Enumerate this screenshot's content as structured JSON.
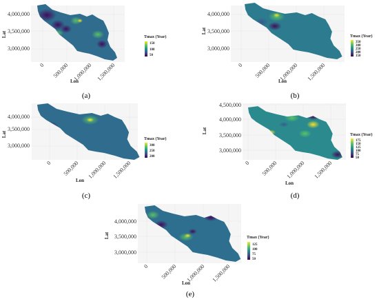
{
  "chart_data": [
    {
      "type": "heatmap",
      "caption": "(a)",
      "legend_title": "Tmax (Year)",
      "legend_ticks": [
        "150",
        "100",
        "50"
      ],
      "xlabel": "Lon",
      "ylabel": "Lat",
      "x_ticks": [
        "0",
        "500,000",
        "1,000,000",
        "1,500,000"
      ],
      "y_ticks": [
        "4,000,000",
        "3,500,000",
        "3,000,000"
      ],
      "colorscale": [
        "#440154",
        "#3b528b",
        "#21918c",
        "#5ec962",
        "#fde725"
      ]
    },
    {
      "type": "heatmap",
      "caption": "(b)",
      "legend_title": "Tmax (Year)",
      "legend_ticks": [
        "350",
        "300",
        "250",
        "200",
        "150"
      ],
      "xlabel": "Lon",
      "ylabel": "Lat",
      "x_ticks": [
        "0",
        "500,000",
        "1,000,000",
        "1,500,000"
      ],
      "y_ticks": [
        "4,000,000",
        "3,500,000",
        "3,000,000"
      ],
      "colorscale": [
        "#440154",
        "#3b528b",
        "#21918c",
        "#5ec962",
        "#fde725"
      ]
    },
    {
      "type": "heatmap",
      "caption": "(c)",
      "legend_title": "Tmax (Year)",
      "legend_ticks": [
        "300",
        "250",
        "200"
      ],
      "xlabel": "Lon",
      "ylabel": "Lat",
      "x_ticks": [
        "0",
        "500,000",
        "1,000,000",
        "1,500,000"
      ],
      "y_ticks": [
        "4,000,000",
        "3,500,000",
        "3,000,000"
      ],
      "colorscale": [
        "#440154",
        "#3b528b",
        "#21918c",
        "#5ec962",
        "#fde725"
      ]
    },
    {
      "type": "heatmap",
      "caption": "(d)",
      "legend_title": "Tmax (Year)",
      "legend_ticks": [
        "175",
        "150",
        "125",
        "100",
        "75",
        "50"
      ],
      "xlabel": "Lon",
      "ylabel": "Lat",
      "x_ticks": [
        "0",
        "500,000",
        "1,000,000",
        "1,500,000"
      ],
      "y_ticks": [
        "4,500,000",
        "4,000,000",
        "3,500,000",
        "3,000,000"
      ],
      "colorscale": [
        "#440154",
        "#3b528b",
        "#21918c",
        "#5ec962",
        "#fde725"
      ]
    },
    {
      "type": "heatmap",
      "caption": "(e)",
      "legend_title": "Tmax (Year)",
      "legend_ticks": [
        "125",
        "100",
        "75",
        "50"
      ],
      "xlabel": "Lon",
      "ylabel": "Lat",
      "x_ticks": [
        "0",
        "500,000",
        "1,000,000",
        "1,500,000"
      ],
      "y_ticks": [
        "4,000,000",
        "3,500,000",
        "3,000,000"
      ],
      "colorscale": [
        "#440154",
        "#3b528b",
        "#21918c",
        "#5ec962",
        "#fde725"
      ]
    }
  ]
}
